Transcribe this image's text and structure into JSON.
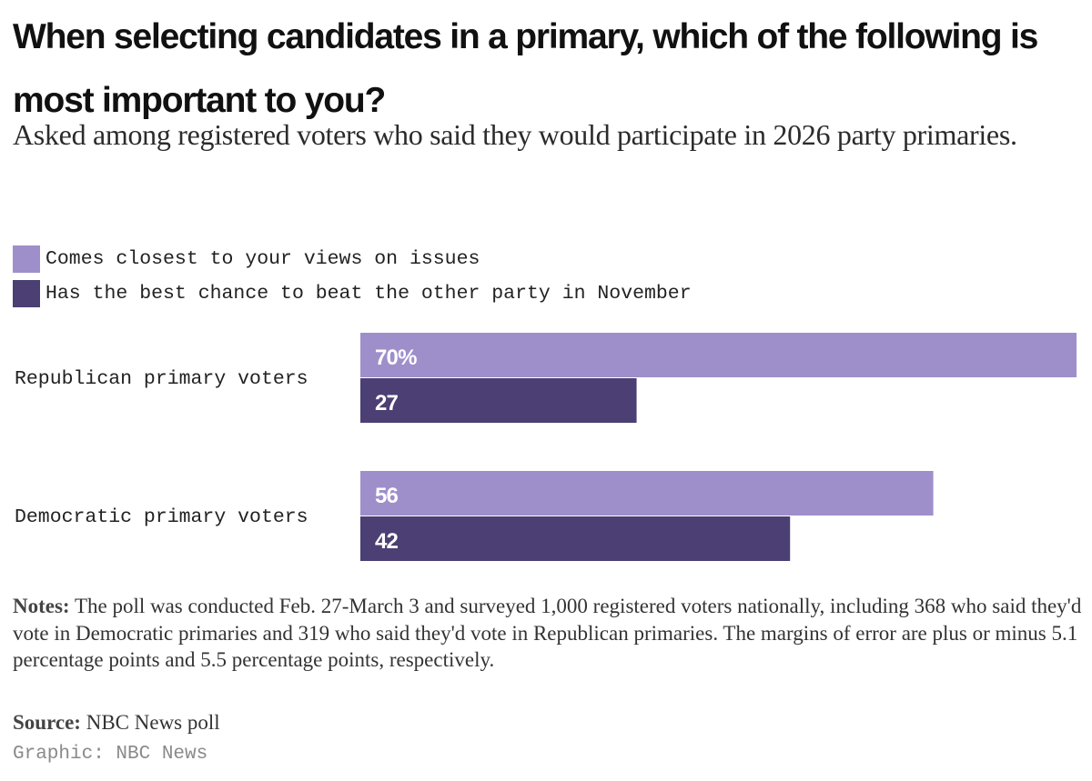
{
  "title": "When selecting candidates in a primary, which of the following is most important to you?",
  "subtitle": "Asked among registered voters who said they would participate in 2026 party primaries.",
  "legend": [
    {
      "label": "Comes closest to your views on issues",
      "color": "#9e8fcb"
    },
    {
      "label": "Has the best chance to beat the other party in November",
      "color": "#4b3f73"
    }
  ],
  "chart_data": {
    "type": "bar",
    "orientation": "horizontal",
    "categories": [
      "Republican primary voters",
      "Democratic primary voters"
    ],
    "series": [
      {
        "name": "Comes closest to your views on issues",
        "values": [
          70,
          56
        ],
        "labels": [
          "70%",
          "56"
        ],
        "color": "#9e8fcb"
      },
      {
        "name": "Has the best chance to beat the other party in November",
        "values": [
          27,
          42
        ],
        "labels": [
          "27",
          "42"
        ],
        "color": "#4b3f73"
      }
    ],
    "xlim": [
      0,
      70
    ],
    "grid": false,
    "legend_position": "top-left",
    "title": "When selecting candidates in a primary, which of the following is most important to you?"
  },
  "notes": {
    "label": "Notes:",
    "text": "The poll was conducted Feb. 27-March 3 and surveyed 1,000 registered voters nationally, including 368 who said they'd vote in Democratic primaries and 319 who said they'd vote in Republican primaries. The margins of error are plus or minus 5.1 percentage points and 5.5 percentage points, respectively."
  },
  "source": {
    "label": "Source:",
    "text": "NBC News poll"
  },
  "credit": "Graphic: NBC News"
}
